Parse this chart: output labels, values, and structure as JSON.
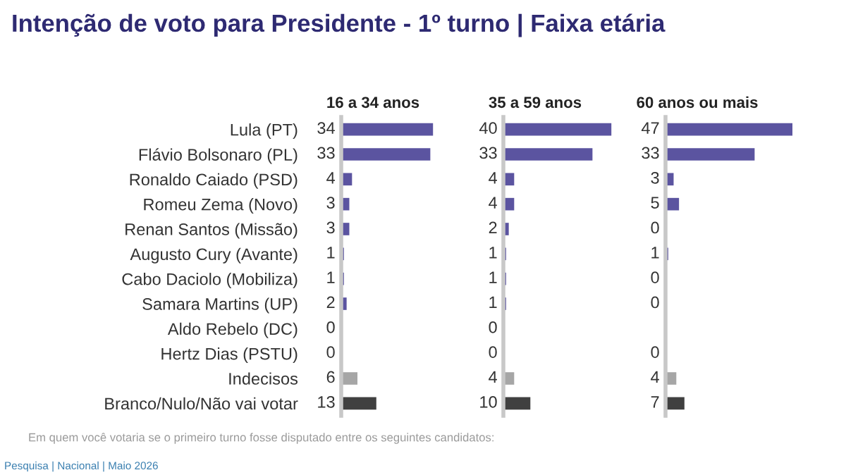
{
  "chart_data": [
    {
      "type": "bar",
      "orientation": "horizontal",
      "title": "Intenção de voto para Presidente - 1º turno | Faixa etária",
      "subtitle": "16 a 34 anos",
      "categories": [
        "Lula (PT)",
        "Flávio Bolsonaro (PL)",
        "Ronaldo Caiado (PSD)",
        "Romeu Zema (Novo)",
        "Renan Santos (Missão)",
        "Augusto Cury (Avante)",
        "Cabo Daciolo (Mobiliza)",
        "Samara Martins (UP)",
        "Aldo Rebelo (DC)",
        "Hertz Dias (PSTU)",
        "Indecisos",
        "Branco/Nulo/Não vai votar"
      ],
      "values": [
        34,
        33,
        4,
        3,
        3,
        1,
        1,
        2,
        0,
        0,
        6,
        13
      ],
      "colors": [
        "#5b54a0",
        "#5b54a0",
        "#5b54a0",
        "#5b54a0",
        "#5b54a0",
        "#5b54a0",
        "#5b54a0",
        "#5b54a0",
        "#5b54a0",
        "#5b54a0",
        "#a6a6a6",
        "#404040"
      ],
      "data_labels": true,
      "tick_labels": "y",
      "annotations": [
        "Em quem você votaria se o primeiro turno fosse disputado entre os seguintes candidatos:",
        "Pesquisa | Nacional | Maio 2026"
      ]
    },
    {
      "type": "bar",
      "orientation": "horizontal",
      "subtitle": "35 a 59 anos",
      "categories": [
        null,
        null,
        null,
        null,
        null,
        null,
        null,
        null,
        null,
        null,
        null,
        null
      ],
      "values": [
        40,
        33,
        4,
        4,
        2,
        1,
        1,
        1,
        0,
        0,
        4,
        10
      ],
      "colors": [
        "#5b54a0",
        "#5b54a0",
        "#5b54a0",
        "#5b54a0",
        "#5b54a0",
        "#5b54a0",
        "#5b54a0",
        "#5b54a0",
        "#5b54a0",
        "#5b54a0",
        "#a6a6a6",
        "#404040"
      ],
      "data_labels": true
    },
    {
      "type": "bar",
      "orientation": "horizontal",
      "subtitle": "60 anos ou mais",
      "categories": [
        null,
        null,
        null,
        null,
        null,
        null,
        null,
        null,
        null,
        null,
        null,
        null
      ],
      "values": [
        47,
        33,
        3,
        5,
        0,
        1,
        0,
        0,
        null,
        0,
        4,
        7
      ],
      "colors": [
        "#5b54a0",
        "#5b54a0",
        "#5b54a0",
        "#5b54a0",
        "#5b54a0",
        "#5b54a0",
        "#5b54a0",
        "#5b54a0",
        "#5b54a0",
        "#5b54a0",
        "#a6a6a6",
        "#404040"
      ],
      "data_labels": true
    }
  ]
}
